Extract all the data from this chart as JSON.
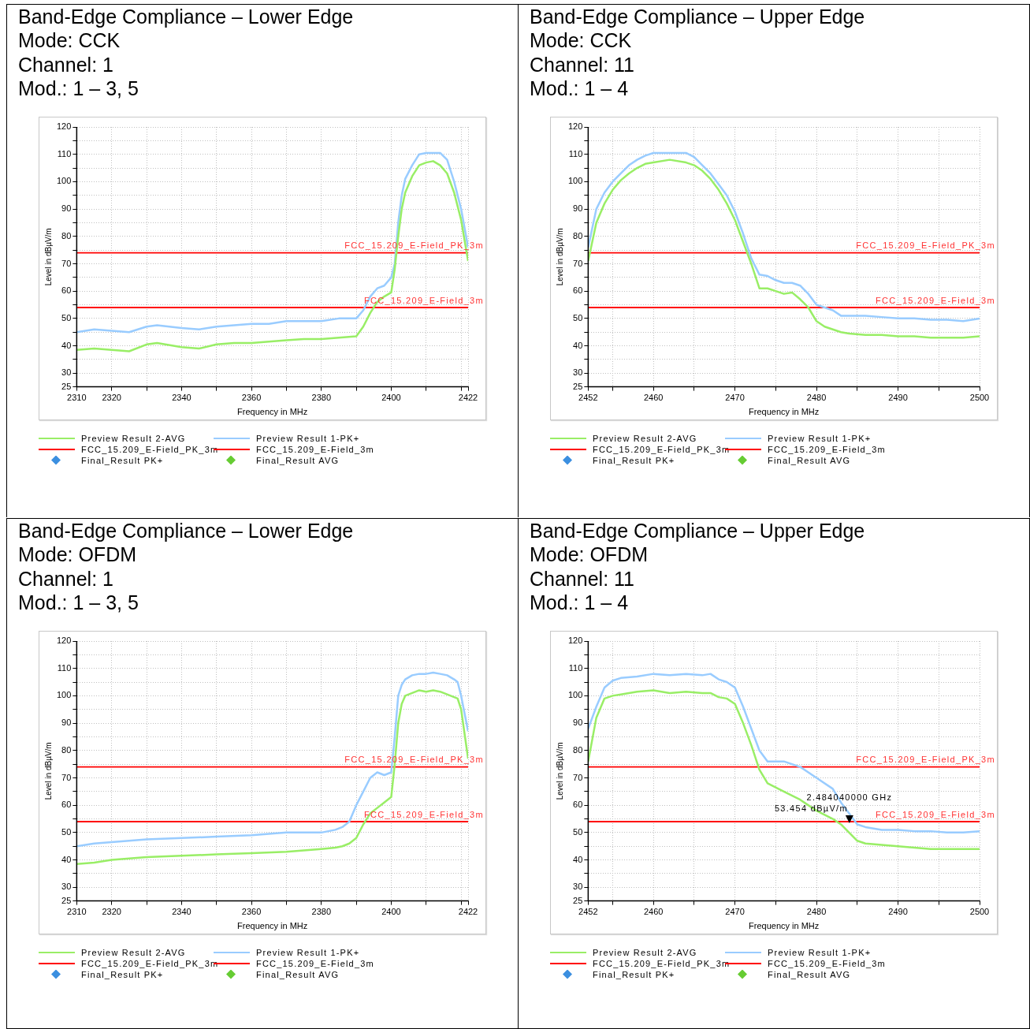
{
  "chart_data": [
    {
      "type": "line",
      "title": "Band-Edge Compliance – Lower Edge",
      "subtitle": "Mode: CCK\nChannel: 1\nMod.: 1 – 3, 5",
      "xlabel": "Frequency in MHz",
      "ylabel": "Level in dBµV/m",
      "xlim": [
        2310,
        2422
      ],
      "ylim": [
        25,
        120
      ],
      "xticks": [
        2310,
        2320,
        {
          "value": 2330,
          "label": null
        },
        2340,
        {
          "value": 2350,
          "label": null
        },
        2360,
        {
          "value": 2370,
          "label": null
        },
        2380,
        {
          "value": 2390,
          "label": null
        },
        2400,
        {
          "value": 2410,
          "label": null
        },
        {
          "value": 2420,
          "label": null
        },
        2422
      ],
      "yticks": [
        25,
        30,
        {
          "value": 35,
          "label": null
        },
        40,
        {
          "value": 45,
          "label": null
        },
        50,
        {
          "value": 55,
          "label": null
        },
        60,
        {
          "value": 65,
          "label": null
        },
        70,
        {
          "value": 75,
          "label": null
        },
        80,
        {
          "value": 85,
          "label": null
        },
        90,
        {
          "value": 95,
          "label": null
        },
        100,
        {
          "value": 105,
          "label": null
        },
        110,
        {
          "value": 115,
          "label": null
        },
        120
      ],
      "grid": true,
      "legend": "bottom",
      "line_style": "solid",
      "x": [
        2310,
        2315,
        2320,
        2325,
        2330,
        2333,
        2340,
        2345,
        2350,
        2355,
        2360,
        2365,
        2370,
        2375,
        2380,
        2385,
        2390,
        2392,
        2394,
        2396,
        2398,
        2400,
        2401,
        2402,
        2403,
        2404,
        2406,
        2408,
        2410,
        2412,
        2414,
        2416,
        2418,
        2420,
        2422
      ],
      "series": [
        {
          "name": "Preview Result 2-AVG",
          "color": "#99ee66",
          "marker": "none",
          "values": [
            38.5,
            39,
            38.5,
            38,
            40.5,
            41,
            39.5,
            39,
            40.5,
            41,
            41,
            41.5,
            42,
            42.5,
            42.5,
            43,
            43.5,
            47,
            52,
            56,
            58,
            59.5,
            68,
            80,
            90,
            96,
            102,
            106,
            107,
            107.5,
            106,
            103,
            96,
            86,
            71
          ]
        },
        {
          "name": "Preview Result 1-PK+",
          "color": "#99ccff",
          "marker": "none",
          "values": [
            45,
            46,
            45.5,
            45,
            47,
            47.5,
            46.5,
            46,
            47,
            47.5,
            48,
            48,
            49,
            49,
            49,
            50,
            50,
            53,
            58,
            61,
            62,
            65,
            70,
            85,
            95,
            101,
            106,
            110,
            110.5,
            110.5,
            110.5,
            108,
            100,
            90,
            76
          ]
        },
        {
          "name": "FCC_15.209_E-Field_PK_3m",
          "color": "#ff0000",
          "marker": "none",
          "x": [
            2310,
            2422
          ],
          "values": [
            74,
            74
          ]
        },
        {
          "name": "FCC_15.209_E-Field_3m",
          "color": "#ff0000",
          "marker": "none",
          "x": [
            2310,
            2422
          ],
          "values": [
            54,
            54
          ]
        },
        {
          "name": "Final_Result PK+",
          "type": "scatter",
          "color": "#3b8fe0",
          "marker": "diamond",
          "values": [
            null,
            null,
            null,
            null,
            null,
            null,
            null,
            null,
            null,
            null,
            null,
            null,
            null,
            null,
            null,
            null,
            null,
            null,
            null,
            null,
            null,
            null,
            null,
            null,
            null,
            null,
            null,
            null,
            null,
            null,
            null,
            null,
            null,
            null,
            null
          ]
        },
        {
          "name": "Final_Result AVG",
          "type": "scatter",
          "color": "#66cc33",
          "marker": "diamond",
          "values": [
            null,
            null,
            null,
            null,
            null,
            null,
            null,
            null,
            null,
            null,
            null,
            null,
            null,
            null,
            null,
            null,
            null,
            null,
            null,
            null,
            null,
            null,
            null,
            null,
            null,
            null,
            null,
            null,
            null,
            null,
            null,
            null,
            null,
            null,
            null
          ]
        }
      ],
      "annotations": [
        {
          "text": "FCC_15.209_E-Field_PK_3m",
          "x": 2422,
          "y": 74
        },
        {
          "text": "FCC_15.209_E-Field_3m",
          "x": 2422,
          "y": 54
        }
      ]
    },
    {
      "type": "line",
      "title": "Band-Edge Compliance – Upper Edge",
      "subtitle": "Mode: CCK\nChannel: 11\nMod.: 1 – 4",
      "xlabel": "Frequency in MHz",
      "ylabel": "Level in dBµV/m",
      "xlim": [
        2452,
        2500
      ],
      "ylim": [
        25,
        120
      ],
      "xticks": [
        2452,
        {
          "value": 2455,
          "label": null
        },
        2460,
        {
          "value": 2465,
          "label": null
        },
        2470,
        {
          "value": 2475,
          "label": null
        },
        2480,
        {
          "value": 2485,
          "label": null
        },
        2490,
        {
          "value": 2495,
          "label": null
        },
        2500
      ],
      "yticks": [
        25,
        30,
        {
          "value": 35,
          "label": null
        },
        40,
        {
          "value": 45,
          "label": null
        },
        50,
        {
          "value": 55,
          "label": null
        },
        60,
        {
          "value": 65,
          "label": null
        },
        70,
        {
          "value": 75,
          "label": null
        },
        80,
        {
          "value": 85,
          "label": null
        },
        90,
        {
          "value": 95,
          "label": null
        },
        100,
        {
          "value": 105,
          "label": null
        },
        110,
        {
          "value": 115,
          "label": null
        },
        120
      ],
      "grid": true,
      "legend": "bottom",
      "line_style": "solid",
      "x": [
        2452,
        2453,
        2454,
        2455,
        2456,
        2457,
        2458,
        2459,
        2460,
        2462,
        2464,
        2465,
        2466,
        2467,
        2468,
        2469,
        2470,
        2471,
        2472,
        2473,
        2474,
        2475,
        2476,
        2477,
        2478,
        2479,
        2480,
        2481,
        2482,
        2483,
        2484,
        2486,
        2488,
        2490,
        2492,
        2494,
        2496,
        2498,
        2500
      ],
      "series": [
        {
          "name": "Preview Result 2-AVG",
          "color": "#99ee66",
          "marker": "none",
          "values": [
            71,
            85,
            92,
            97,
            100.5,
            103,
            105,
            106.5,
            107,
            108,
            107,
            106,
            104,
            101,
            97,
            92,
            86,
            78,
            70,
            61,
            61,
            60,
            59,
            59.5,
            57,
            54,
            49,
            47,
            46,
            45,
            44.5,
            44,
            44,
            43.5,
            43.5,
            43,
            43,
            43,
            43.5
          ]
        },
        {
          "name": "Preview Result 1-PK+",
          "color": "#99ccff",
          "marker": "none",
          "values": [
            76,
            90,
            96,
            100,
            103,
            106,
            108,
            109.5,
            110.5,
            110.5,
            110.5,
            109,
            106,
            103,
            99,
            95,
            89,
            81,
            72,
            66,
            65.5,
            64,
            63,
            63,
            62,
            59,
            55,
            54,
            53,
            51,
            51,
            51,
            50.5,
            50,
            50,
            49.5,
            49.5,
            49,
            50
          ]
        },
        {
          "name": "FCC_15.209_E-Field_PK_3m",
          "color": "#ff0000",
          "marker": "none",
          "x": [
            2452,
            2500
          ],
          "values": [
            74,
            74
          ]
        },
        {
          "name": "FCC_15.209_E-Field_3m",
          "color": "#ff0000",
          "marker": "none",
          "x": [
            2452,
            2500
          ],
          "values": [
            54,
            54
          ]
        },
        {
          "name": "Final_Result PK+",
          "type": "scatter",
          "color": "#3b8fe0",
          "marker": "diamond",
          "values": [
            null,
            null,
            null,
            null,
            null,
            null,
            null,
            null,
            null,
            null,
            null,
            null,
            null,
            null,
            null,
            null,
            null,
            null,
            null,
            null,
            null,
            null,
            null,
            null,
            null,
            null,
            null,
            null,
            null,
            null,
            null,
            null,
            null,
            null,
            null,
            null,
            null,
            null,
            null
          ]
        },
        {
          "name": "Final_Result AVG",
          "type": "scatter",
          "color": "#66cc33",
          "marker": "diamond",
          "values": [
            null,
            null,
            null,
            null,
            null,
            null,
            null,
            null,
            null,
            null,
            null,
            null,
            null,
            null,
            null,
            null,
            null,
            null,
            null,
            null,
            null,
            null,
            null,
            null,
            null,
            null,
            null,
            null,
            null,
            null,
            null,
            null,
            null,
            null,
            null,
            null,
            null,
            null,
            null
          ]
        }
      ],
      "annotations": [
        {
          "text": "FCC_15.209_E-Field_PK_3m",
          "x": 2500,
          "y": 74
        },
        {
          "text": "FCC_15.209_E-Field_3m",
          "x": 2500,
          "y": 54
        }
      ]
    },
    {
      "type": "line",
      "title": "Band-Edge Compliance – Lower Edge",
      "subtitle": "Mode: OFDM\nChannel: 1\nMod.: 1 – 3, 5",
      "xlabel": "Frequency in MHz",
      "ylabel": "Level in dBµV/m",
      "xlim": [
        2310,
        2422
      ],
      "ylim": [
        25,
        120
      ],
      "xticks": [
        2310,
        2320,
        {
          "value": 2330,
          "label": null
        },
        2340,
        {
          "value": 2350,
          "label": null
        },
        2360,
        {
          "value": 2370,
          "label": null
        },
        2380,
        {
          "value": 2390,
          "label": null
        },
        2400,
        {
          "value": 2410,
          "label": null
        },
        {
          "value": 2420,
          "label": null
        },
        2422
      ],
      "yticks": [
        25,
        30,
        {
          "value": 35,
          "label": null
        },
        40,
        {
          "value": 45,
          "label": null
        },
        50,
        {
          "value": 55,
          "label": null
        },
        60,
        {
          "value": 65,
          "label": null
        },
        70,
        {
          "value": 75,
          "label": null
        },
        80,
        {
          "value": 85,
          "label": null
        },
        90,
        {
          "value": 95,
          "label": null
        },
        100,
        {
          "value": 105,
          "label": null
        },
        110,
        {
          "value": 115,
          "label": null
        },
        120
      ],
      "grid": true,
      "legend": "bottom",
      "line_style": "solid",
      "x": [
        2310,
        2315,
        2320,
        2330,
        2340,
        2350,
        2360,
        2370,
        2380,
        2384,
        2386,
        2388,
        2390,
        2392,
        2394,
        2396,
        2398,
        2400,
        2401,
        2402,
        2403,
        2404,
        2406,
        2408,
        2410,
        2412,
        2414,
        2416,
        2418,
        2419,
        2420,
        2422
      ],
      "series": [
        {
          "name": "Preview Result 2-AVG",
          "color": "#99ee66",
          "marker": "none",
          "values": [
            38.5,
            39,
            40,
            41,
            41.5,
            42,
            42.5,
            43,
            44,
            44.5,
            45,
            46,
            48,
            53,
            57,
            59,
            61,
            63,
            75,
            90,
            97,
            100,
            101,
            102,
            101.5,
            102,
            101.5,
            100.5,
            99.5,
            99,
            95,
            77
          ]
        },
        {
          "name": "Preview Result 1-PK+",
          "color": "#99ccff",
          "marker": "none",
          "values": [
            45,
            46,
            46.5,
            47.5,
            48,
            48.5,
            49,
            50,
            50,
            51,
            52,
            54,
            60,
            65,
            70,
            72,
            71,
            72,
            85,
            100,
            104,
            106,
            107.5,
            108,
            108,
            108.5,
            108,
            107.5,
            106,
            105,
            100,
            87
          ]
        },
        {
          "name": "FCC_15.209_E-Field_PK_3m",
          "color": "#ff0000",
          "marker": "none",
          "x": [
            2310,
            2422
          ],
          "values": [
            74,
            74
          ]
        },
        {
          "name": "FCC_15.209_E-Field_3m",
          "color": "#ff0000",
          "marker": "none",
          "x": [
            2310,
            2422
          ],
          "values": [
            54,
            54
          ]
        },
        {
          "name": "Final_Result PK+",
          "type": "scatter",
          "color": "#3b8fe0",
          "marker": "diamond",
          "values": [
            null,
            null,
            null,
            null,
            null,
            null,
            null,
            null,
            null,
            null,
            null,
            null,
            null,
            null,
            null,
            null,
            null,
            null,
            null,
            null,
            null,
            null,
            null,
            null,
            null,
            null,
            null,
            null,
            null,
            null,
            null,
            null
          ]
        },
        {
          "name": "Final_Result AVG",
          "type": "scatter",
          "color": "#66cc33",
          "marker": "diamond",
          "values": [
            null,
            null,
            null,
            null,
            null,
            null,
            null,
            null,
            null,
            null,
            null,
            null,
            null,
            null,
            null,
            null,
            null,
            null,
            null,
            null,
            null,
            null,
            null,
            null,
            null,
            null,
            null,
            null,
            null,
            null,
            null,
            null
          ]
        }
      ],
      "annotations": [
        {
          "text": "FCC_15.209_E-Field_PK_3m",
          "x": 2422,
          "y": 74
        },
        {
          "text": "FCC_15.209_E-Field_3m",
          "x": 2422,
          "y": 54
        }
      ]
    },
    {
      "type": "line",
      "title": "Band-Edge Compliance – Upper Edge",
      "subtitle": "Mode: OFDM\nChannel: 11\nMod.: 1 – 4",
      "xlabel": "Frequency in MHz",
      "ylabel": "Level in dBµV/m",
      "xlim": [
        2452,
        2500
      ],
      "ylim": [
        25,
        120
      ],
      "xticks": [
        2452,
        {
          "value": 2455,
          "label": null
        },
        2460,
        {
          "value": 2465,
          "label": null
        },
        2470,
        {
          "value": 2475,
          "label": null
        },
        2480,
        {
          "value": 2485,
          "label": null
        },
        2490,
        {
          "value": 2495,
          "label": null
        },
        2500
      ],
      "yticks": [
        25,
        30,
        {
          "value": 35,
          "label": null
        },
        40,
        {
          "value": 45,
          "label": null
        },
        50,
        {
          "value": 55,
          "label": null
        },
        60,
        {
          "value": 65,
          "label": null
        },
        70,
        {
          "value": 75,
          "label": null
        },
        80,
        {
          "value": 85,
          "label": null
        },
        90,
        {
          "value": 95,
          "label": null
        },
        100,
        {
          "value": 105,
          "label": null
        },
        110,
        {
          "value": 115,
          "label": null
        },
        120
      ],
      "grid": true,
      "legend": "bottom",
      "line_style": "solid",
      "x": [
        2452,
        2453,
        2454,
        2455,
        2456,
        2458,
        2460,
        2462,
        2464,
        2466,
        2467,
        2468,
        2469,
        2470,
        2471,
        2472,
        2473,
        2474,
        2476,
        2478,
        2480,
        2482,
        2483,
        2484,
        2485,
        2486,
        2488,
        2490,
        2492,
        2494,
        2496,
        2498,
        2500
      ],
      "series": [
        {
          "name": "Preview Result 2-AVG",
          "color": "#99ee66",
          "marker": "none",
          "values": [
            76,
            92,
            99,
            100,
            100.5,
            101.5,
            102,
            101,
            101.5,
            101,
            101,
            99.5,
            99,
            97,
            90,
            82,
            73,
            68,
            65,
            62,
            58,
            55,
            53,
            50,
            47,
            46,
            45.5,
            45,
            44.5,
            44,
            44,
            44,
            44
          ]
        },
        {
          "name": "Preview Result 1-PK+",
          "color": "#99ccff",
          "marker": "none",
          "values": [
            88,
            96,
            103,
            105.5,
            106.5,
            107,
            108,
            107.5,
            108,
            107.5,
            108,
            106,
            105,
            103,
            96,
            88,
            80,
            76,
            76,
            74,
            70,
            66,
            61,
            57,
            53,
            52,
            51,
            51,
            50.5,
            50.5,
            50,
            50,
            50.5
          ]
        },
        {
          "name": "FCC_15.209_E-Field_PK_3m",
          "color": "#ff0000",
          "marker": "none",
          "x": [
            2452,
            2500
          ],
          "values": [
            74,
            74
          ]
        },
        {
          "name": "FCC_15.209_E-Field_3m",
          "color": "#ff0000",
          "marker": "none",
          "x": [
            2452,
            2500
          ],
          "values": [
            54,
            54
          ]
        },
        {
          "name": "Final_Result PK+",
          "type": "scatter",
          "color": "#3b8fe0",
          "marker": "diamond",
          "values": [
            null,
            null,
            null,
            null,
            null,
            null,
            null,
            null,
            null,
            null,
            null,
            null,
            null,
            null,
            null,
            null,
            null,
            null,
            null,
            null,
            null,
            null,
            null,
            null,
            null,
            null,
            null,
            null,
            null,
            null,
            null,
            null,
            null
          ]
        },
        {
          "name": "Final_Result AVG",
          "type": "scatter",
          "color": "#66cc33",
          "marker": "diamond",
          "values": [
            null,
            null,
            null,
            null,
            null,
            null,
            null,
            null,
            null,
            null,
            null,
            null,
            null,
            null,
            null,
            null,
            null,
            null,
            null,
            null,
            null,
            null,
            null,
            null,
            null,
            null,
            null,
            null,
            null,
            null,
            null,
            null,
            null
          ]
        }
      ],
      "annotations": [
        {
          "text": "FCC_15.209_E-Field_PK_3m",
          "x": 2500,
          "y": 74
        },
        {
          "text": "FCC_15.209_E-Field_3m",
          "x": 2500,
          "y": 54
        },
        {
          "text": "2.484040000 GHz\n53.454 dBµV/m",
          "x": 2484.04,
          "y": 53.454
        }
      ]
    }
  ]
}
